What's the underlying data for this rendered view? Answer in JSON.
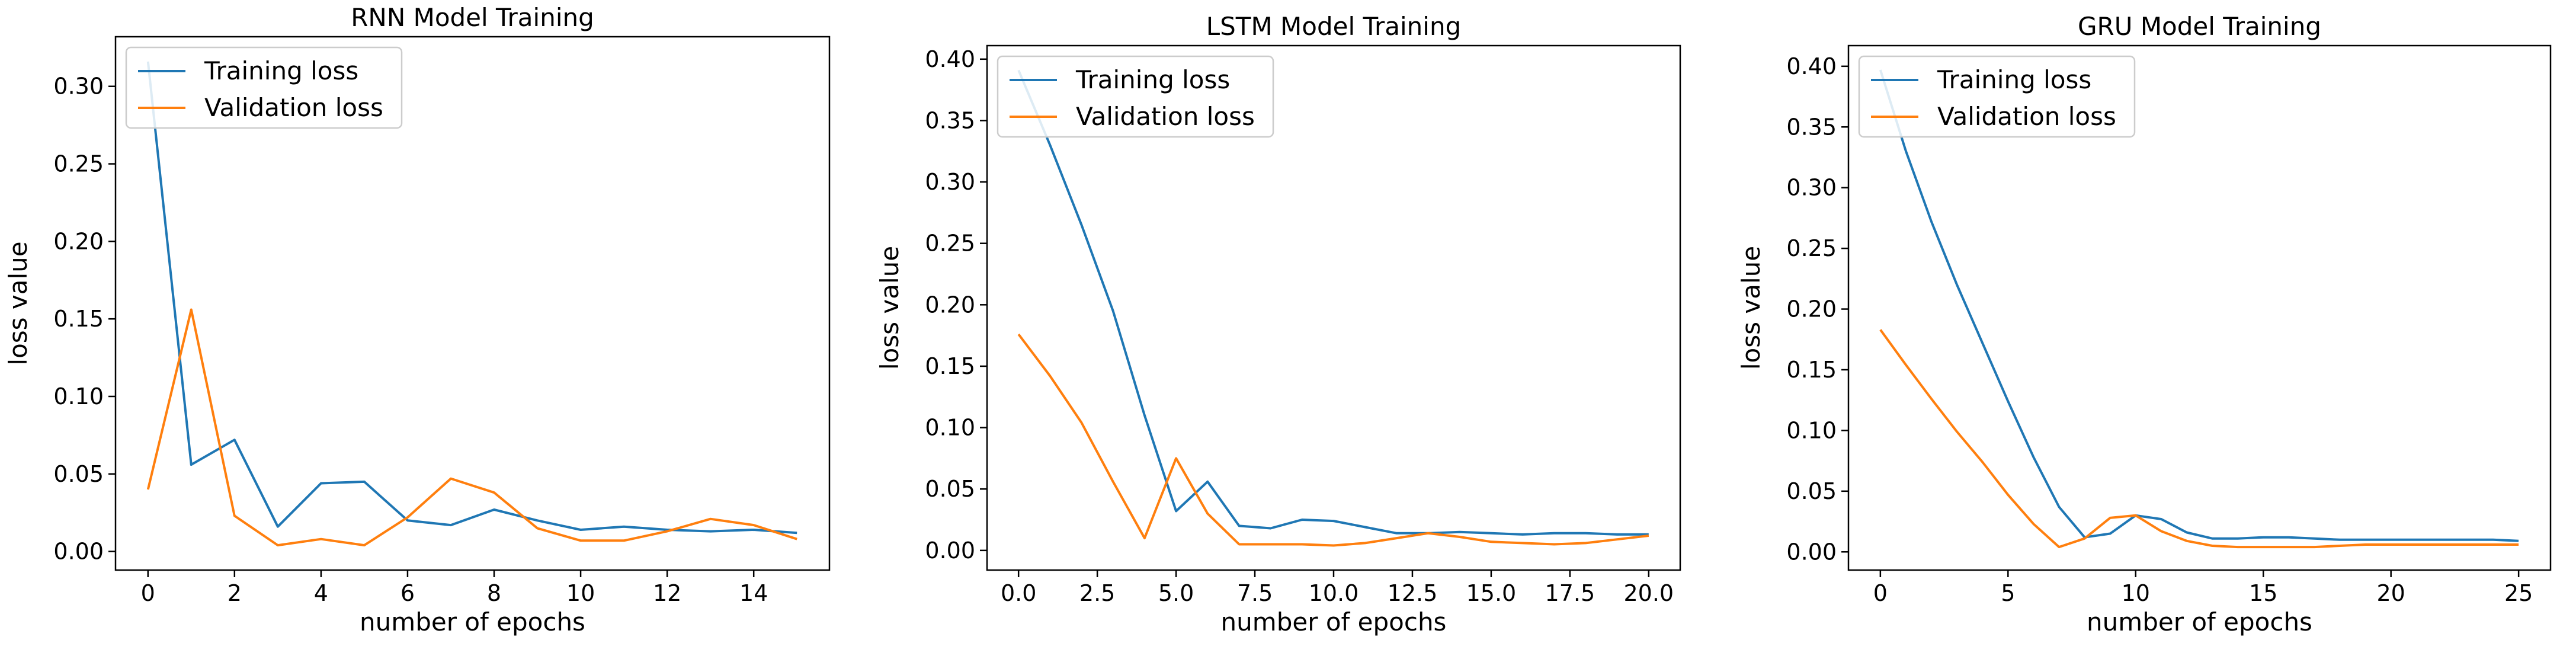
{
  "colors": {
    "training": "#1f77b4",
    "validation": "#ff7f0e",
    "axis": "#000000",
    "legend_border": "#cccccc"
  },
  "chart_data": [
    {
      "type": "line",
      "title": "RNN Model Training",
      "xlabel": "number of epochs",
      "ylabel": "loss value",
      "xlim": [
        -0.75,
        15.75
      ],
      "ylim": [
        -0.012,
        0.332
      ],
      "xticks": [
        0,
        2,
        4,
        6,
        8,
        10,
        12,
        14
      ],
      "xtick_labels": [
        "0",
        "2",
        "4",
        "6",
        "8",
        "10",
        "12",
        "14"
      ],
      "yticks": [
        0.0,
        0.05,
        0.1,
        0.15,
        0.2,
        0.25,
        0.3
      ],
      "ytick_labels": [
        "0.00",
        "0.05",
        "0.10",
        "0.15",
        "0.20",
        "0.25",
        "0.30"
      ],
      "legend": "top-left",
      "series": [
        {
          "name": "Training loss",
          "color_key": "training",
          "x": [
            0,
            1,
            2,
            3,
            4,
            5,
            6,
            7,
            8,
            9,
            10,
            11,
            12,
            13,
            14,
            15
          ],
          "values": [
            0.316,
            0.056,
            0.072,
            0.016,
            0.044,
            0.045,
            0.02,
            0.017,
            0.027,
            0.02,
            0.014,
            0.016,
            0.014,
            0.013,
            0.014,
            0.012
          ]
        },
        {
          "name": "Validation loss",
          "color_key": "validation",
          "x": [
            0,
            1,
            2,
            3,
            4,
            5,
            6,
            7,
            8,
            9,
            10,
            11,
            12,
            13,
            14,
            15
          ],
          "values": [
            0.04,
            0.156,
            0.023,
            0.004,
            0.008,
            0.004,
            0.022,
            0.047,
            0.038,
            0.015,
            0.007,
            0.007,
            0.013,
            0.021,
            0.017,
            0.008
          ]
        }
      ]
    },
    {
      "type": "line",
      "title": "LSTM Model Training",
      "xlabel": "number of epochs",
      "ylabel": "loss value",
      "xlim": [
        -1.0,
        21.0
      ],
      "ylim": [
        -0.016,
        0.411
      ],
      "xticks": [
        0,
        2.5,
        5,
        7.5,
        10,
        12.5,
        15,
        17.5,
        20
      ],
      "xtick_labels": [
        "0.0",
        "2.5",
        "5.0",
        "7.5",
        "10.0",
        "12.5",
        "15.0",
        "17.5",
        "20.0"
      ],
      "yticks": [
        0.0,
        0.05,
        0.1,
        0.15,
        0.2,
        0.25,
        0.3,
        0.35,
        0.4
      ],
      "ytick_labels": [
        "0.00",
        "0.05",
        "0.10",
        "0.15",
        "0.20",
        "0.25",
        "0.30",
        "0.35",
        "0.40"
      ],
      "legend": "top-left",
      "series": [
        {
          "name": "Training loss",
          "color_key": "training",
          "x": [
            0,
            1,
            2,
            3,
            4,
            5,
            6,
            7,
            8,
            9,
            10,
            11,
            12,
            13,
            14,
            15,
            16,
            17,
            18,
            19,
            20
          ],
          "values": [
            0.391,
            0.33,
            0.265,
            0.195,
            0.11,
            0.032,
            0.056,
            0.02,
            0.018,
            0.025,
            0.024,
            0.019,
            0.014,
            0.014,
            0.015,
            0.014,
            0.013,
            0.014,
            0.014,
            0.013,
            0.013
          ]
        },
        {
          "name": "Validation loss",
          "color_key": "validation",
          "x": [
            0,
            1,
            2,
            3,
            4,
            5,
            6,
            7,
            8,
            9,
            10,
            11,
            12,
            13,
            14,
            15,
            16,
            17,
            18,
            19,
            20
          ],
          "values": [
            0.176,
            0.142,
            0.104,
            0.056,
            0.01,
            0.075,
            0.03,
            0.005,
            0.005,
            0.005,
            0.004,
            0.006,
            0.01,
            0.014,
            0.011,
            0.007,
            0.006,
            0.005,
            0.006,
            0.009,
            0.012
          ]
        }
      ]
    },
    {
      "type": "line",
      "title": "GRU Model Training",
      "xlabel": "number of epochs",
      "ylabel": "loss value",
      "xlim": [
        -1.25,
        26.25
      ],
      "ylim": [
        -0.015,
        0.417
      ],
      "xticks": [
        0,
        5,
        10,
        15,
        20,
        25
      ],
      "xtick_labels": [
        "0",
        "5",
        "10",
        "15",
        "20",
        "25"
      ],
      "yticks": [
        0.0,
        0.05,
        0.1,
        0.15,
        0.2,
        0.25,
        0.3,
        0.35,
        0.4
      ],
      "ytick_labels": [
        "0.00",
        "0.05",
        "0.10",
        "0.15",
        "0.20",
        "0.25",
        "0.30",
        "0.35",
        "0.40"
      ],
      "legend": "top-left",
      "series": [
        {
          "name": "Training loss",
          "color_key": "training",
          "x": [
            0,
            1,
            2,
            3,
            4,
            5,
            6,
            7,
            8,
            9,
            10,
            11,
            12,
            13,
            14,
            15,
            16,
            17,
            18,
            19,
            20,
            21,
            22,
            23,
            24,
            25
          ],
          "values": [
            0.397,
            0.33,
            0.272,
            0.22,
            0.172,
            0.124,
            0.078,
            0.037,
            0.012,
            0.015,
            0.03,
            0.027,
            0.016,
            0.011,
            0.011,
            0.012,
            0.012,
            0.011,
            0.01,
            0.01,
            0.01,
            0.01,
            0.01,
            0.01,
            0.01,
            0.009
          ]
        },
        {
          "name": "Validation loss",
          "color_key": "validation",
          "x": [
            0,
            1,
            2,
            3,
            4,
            5,
            6,
            7,
            8,
            9,
            10,
            11,
            12,
            13,
            14,
            15,
            16,
            17,
            18,
            19,
            20,
            21,
            22,
            23,
            24,
            25
          ],
          "values": [
            0.183,
            0.154,
            0.126,
            0.099,
            0.074,
            0.047,
            0.023,
            0.004,
            0.011,
            0.028,
            0.03,
            0.017,
            0.009,
            0.005,
            0.004,
            0.004,
            0.004,
            0.004,
            0.005,
            0.006,
            0.006,
            0.006,
            0.006,
            0.006,
            0.006,
            0.006
          ]
        }
      ]
    }
  ]
}
